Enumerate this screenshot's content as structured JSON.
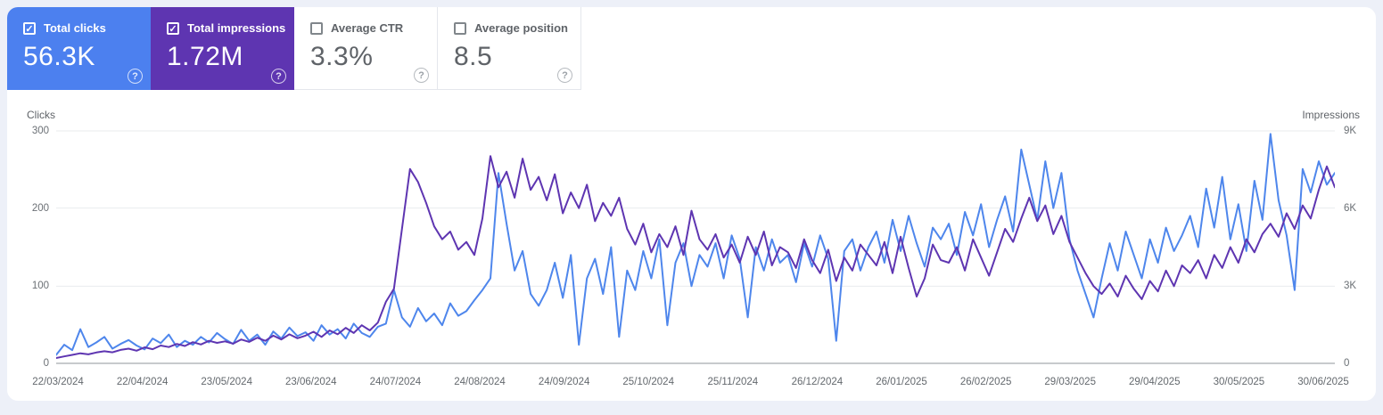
{
  "cards": [
    {
      "label": "Total clicks",
      "value": "56.3K",
      "checked": true,
      "bg": "#4c80ef"
    },
    {
      "label": "Total impressions",
      "value": "1.72M",
      "checked": true,
      "bg": "#5e35b1"
    },
    {
      "label": "Average CTR",
      "value": "3.3%",
      "checked": false,
      "bg": "#ffffff"
    },
    {
      "label": "Average position",
      "value": "8.5",
      "checked": false,
      "bg": "#ffffff"
    }
  ],
  "icons": {
    "check": "✓",
    "help": "?"
  },
  "colors": {
    "clicks_line": "#4e86ec",
    "impressions_line": "#5e35b1",
    "grid": "#e9ebee",
    "baseline": "#8f959b",
    "page_bg": "#edf0f8"
  },
  "chart_data": {
    "type": "line",
    "grid": true,
    "legend_position": "none",
    "left_axis": {
      "label": "Clicks",
      "ticks": [
        "300",
        "200",
        "100",
        "0"
      ],
      "min": 0,
      "max": 300
    },
    "right_axis": {
      "label": "Impressions",
      "ticks": [
        "9K",
        "6K",
        "3K",
        "0"
      ],
      "min": 0,
      "max": 9000
    },
    "x_ticks": [
      "22/03/2024",
      "22/04/2024",
      "23/05/2024",
      "23/06/2024",
      "24/07/2024",
      "24/08/2024",
      "24/09/2024",
      "25/10/2024",
      "25/11/2024",
      "26/12/2024",
      "26/01/2025",
      "26/02/2025",
      "29/03/2025",
      "29/04/2025",
      "30/05/2025",
      "30/06/2025"
    ],
    "series": [
      {
        "name": "Clicks",
        "axis": "left",
        "color": "#4e86ec",
        "values": [
          12,
          25,
          18,
          45,
          22,
          28,
          35,
          20,
          26,
          31,
          24,
          19,
          33,
          27,
          38,
          22,
          30,
          25,
          35,
          28,
          40,
          32,
          26,
          44,
          30,
          38,
          25,
          42,
          33,
          47,
          36,
          41,
          30,
          50,
          38,
          45,
          33,
          52,
          40,
          35,
          48,
          52,
          95,
          60,
          48,
          72,
          55,
          65,
          50,
          78,
          62,
          68,
          82,
          95,
          110,
          245,
          180,
          120,
          145,
          90,
          75,
          95,
          130,
          85,
          140,
          25,
          110,
          135,
          90,
          150,
          35,
          120,
          95,
          145,
          110,
          160,
          50,
          130,
          155,
          100,
          140,
          125,
          155,
          110,
          165,
          135,
          60,
          150,
          120,
          160,
          130,
          140,
          105,
          155,
          125,
          165,
          135,
          30,
          145,
          160,
          120,
          150,
          170,
          130,
          185,
          145,
          190,
          155,
          125,
          175,
          160,
          180,
          140,
          195,
          165,
          205,
          150,
          185,
          215,
          170,
          275,
          230,
          185,
          260,
          200,
          245,
          160,
          120,
          90,
          60,
          110,
          155,
          120,
          170,
          140,
          110,
          160,
          130,
          175,
          145,
          165,
          190,
          150,
          225,
          175,
          240,
          160,
          205,
          145,
          235,
          185,
          295,
          210,
          165,
          95,
          250,
          220,
          260,
          230,
          245
        ]
      },
      {
        "name": "Impressions",
        "axis": "right",
        "color": "#5e35b1",
        "values": [
          240,
          300,
          360,
          420,
          380,
          450,
          500,
          460,
          550,
          600,
          520,
          650,
          580,
          720,
          660,
          780,
          700,
          850,
          760,
          900,
          820,
          880,
          790,
          950,
          860,
          1020,
          900,
          1100,
          950,
          1150,
          1000,
          1100,
          1250,
          1050,
          1300,
          1150,
          1400,
          1200,
          1500,
          1300,
          1600,
          2400,
          2900,
          5200,
          7500,
          7000,
          6200,
          5300,
          4800,
          5100,
          4400,
          4700,
          4200,
          5600,
          8000,
          6800,
          7400,
          6400,
          7900,
          6700,
          7200,
          6300,
          7300,
          5800,
          6600,
          6000,
          6900,
          5500,
          6200,
          5700,
          6400,
          5200,
          4600,
          5400,
          4300,
          5000,
          4500,
          5300,
          4200,
          5900,
          4800,
          4400,
          5000,
          4100,
          4600,
          3900,
          4900,
          4200,
          5100,
          3800,
          4500,
          4300,
          3700,
          4800,
          4000,
          3500,
          4400,
          3200,
          4100,
          3600,
          4600,
          4200,
          3800,
          4700,
          3500,
          4900,
          3700,
          2600,
          3300,
          4600,
          4000,
          3900,
          4500,
          3600,
          4800,
          4100,
          3400,
          4300,
          5200,
          4700,
          5600,
          6400,
          5500,
          6100,
          5000,
          5700,
          4700,
          4100,
          3500,
          3000,
          2700,
          3100,
          2600,
          3400,
          2900,
          2500,
          3200,
          2800,
          3600,
          3000,
          3800,
          3500,
          4000,
          3300,
          4200,
          3700,
          4500,
          3900,
          4800,
          4300,
          5000,
          5400,
          4900,
          5800,
          5200,
          6100,
          5600,
          6700,
          7600,
          6800
        ]
      }
    ]
  }
}
